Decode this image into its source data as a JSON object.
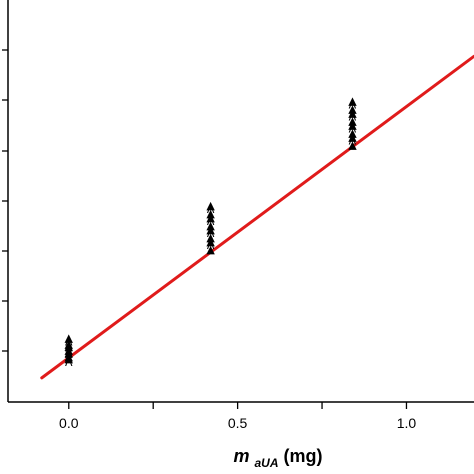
{
  "chart_data": {
    "type": "scatter",
    "title": "",
    "xlabel": {
      "main": "m",
      "subscript": "aUA",
      "unit": "(mg)"
    },
    "ylabel": "",
    "x_tick_labels": [
      "0.0",
      "0.5",
      "1.0"
    ],
    "x_ticks": [
      0.0,
      0.25,
      0.5,
      0.75,
      1.0,
      1.25
    ],
    "xlim": [
      -0.18,
      1.2
    ],
    "ylim": [
      0.0,
      1.0
    ],
    "y_tick_count": 8,
    "grid": false,
    "legend": "none",
    "marker_glyph": "▲",
    "secondary_marker_glyph": "Λ",
    "series": [
      {
        "kind": "points",
        "color": "#000000",
        "x": [
          0.0,
          0.0,
          0.0,
          0.0,
          0.0,
          0.0,
          0.0,
          0.0,
          0.0,
          0.0,
          0.0,
          0.42,
          0.42,
          0.42,
          0.42,
          0.42,
          0.42,
          0.42,
          0.42,
          0.42,
          0.42,
          0.42,
          0.42,
          0.84,
          0.84,
          0.84,
          0.84,
          0.84,
          0.84,
          0.84,
          0.84,
          0.84,
          0.84,
          0.84,
          0.84
        ],
        "y": [
          0.1,
          0.11,
          0.115,
          0.12,
          0.125,
          0.13,
          0.135,
          0.14,
          0.145,
          0.15,
          0.16,
          0.38,
          0.39,
          0.4,
          0.41,
          0.42,
          0.43,
          0.44,
          0.45,
          0.46,
          0.47,
          0.48,
          0.49,
          0.64,
          0.65,
          0.66,
          0.67,
          0.68,
          0.69,
          0.7,
          0.71,
          0.72,
          0.73,
          0.74,
          0.75
        ]
      },
      {
        "kind": "fit-line",
        "color": "#e01b1b",
        "x": [
          -0.08,
          1.2
        ],
        "y": [
          0.06,
          0.86
        ]
      }
    ]
  }
}
